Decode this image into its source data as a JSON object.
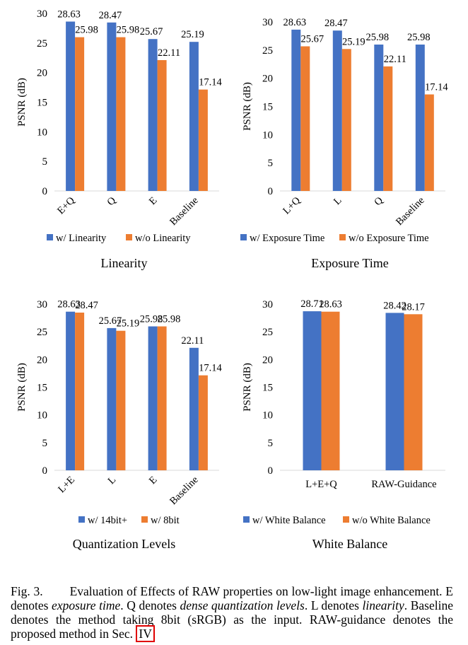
{
  "colors": {
    "series_w": "#4472C4",
    "series_wo": "#ED7D31",
    "axis": "#d9d9d9",
    "text": "#000000"
  },
  "chart_data": [
    {
      "type": "bar",
      "title": "Linearity",
      "ylabel": "PSNR (dB)",
      "xlabel": "",
      "ylim": [
        0,
        30
      ],
      "yticks": [
        "0",
        "5",
        "10",
        "15",
        "20",
        "25",
        "30"
      ],
      "categories": [
        "E+Q",
        "Q",
        "E",
        "Baseline"
      ],
      "label_rotated": true,
      "series": [
        {
          "name": "w/ Linearity",
          "values": [
            28.63,
            28.47,
            25.67,
            25.19
          ],
          "labels": [
            "28.63",
            "28.47",
            "25.67",
            "25.19"
          ]
        },
        {
          "name": "w/o Linearity",
          "values": [
            25.98,
            25.98,
            22.11,
            17.14
          ],
          "labels": [
            "25.98",
            "25.98",
            "22.11",
            "17.14"
          ]
        }
      ],
      "legend": "bottom"
    },
    {
      "type": "bar",
      "title": "Exposure Time",
      "ylabel": "PSNR (dB)",
      "xlabel": "",
      "ylim": [
        0,
        30
      ],
      "yticks": [
        "0",
        "5",
        "10",
        "15",
        "20",
        "25",
        "30"
      ],
      "categories": [
        "L+Q",
        "L",
        "Q",
        "Baseline"
      ],
      "label_rotated": true,
      "series": [
        {
          "name": "w/ Exposure Time",
          "values": [
            28.63,
            28.47,
            25.98,
            25.98
          ],
          "labels": [
            "28.63",
            "28.47",
            "25.98",
            "25.98"
          ]
        },
        {
          "name": "w/o Exposure Time",
          "values": [
            25.67,
            25.19,
            22.11,
            17.14
          ],
          "labels": [
            "25.67",
            "25.19",
            "22.11",
            "17.14"
          ]
        }
      ],
      "legend": "bottom"
    },
    {
      "type": "bar",
      "title": "Quantization Levels",
      "ylabel": "PSNR (dB)",
      "xlabel": "",
      "ylim": [
        0,
        30
      ],
      "yticks": [
        "0",
        "5",
        "10",
        "15",
        "20",
        "25",
        "30"
      ],
      "categories": [
        "L+E",
        "L",
        "E",
        "Baseline"
      ],
      "label_rotated": true,
      "series": [
        {
          "name": "w/ 14bit+",
          "values": [
            28.63,
            25.67,
            25.98,
            22.11
          ],
          "labels": [
            "28.63",
            "25.67",
            "25.98",
            "22.11"
          ]
        },
        {
          "name": "w/ 8bit",
          "values": [
            28.47,
            25.19,
            25.98,
            17.14
          ],
          "labels": [
            "28.47",
            "25.19",
            "25.98",
            "17.14"
          ]
        }
      ],
      "legend": "bottom"
    },
    {
      "type": "bar",
      "title": "White Balance",
      "ylabel": "PSNR (dB)",
      "xlabel": "",
      "ylim": [
        0,
        30
      ],
      "yticks": [
        "0",
        "5",
        "10",
        "15",
        "20",
        "25",
        "30"
      ],
      "categories": [
        "L+E+Q",
        "RAW-Guidance"
      ],
      "label_rotated": false,
      "series": [
        {
          "name": "w/  White Balance",
          "values": [
            28.71,
            28.42
          ],
          "labels": [
            "28.71",
            "28.42"
          ]
        },
        {
          "name": "w/o White Balance",
          "values": [
            28.63,
            28.17
          ],
          "labels": [
            "28.63",
            "28.17"
          ]
        }
      ],
      "legend": "bottom"
    }
  ],
  "caption": {
    "label": "Fig. 3.",
    "text_1": "Evaluation of Effects of RAW properties on low-light image enhancement. E denotes ",
    "em_1": "exposure time",
    "text_2": ". Q denotes ",
    "em_2": "dense quantization levels",
    "text_3": ". L denotes ",
    "em_3": "linearity",
    "text_4": ". Baseline denotes the method taking 8bit (sRGB) as the input. RAW-guidance denotes the proposed method in Sec. ",
    "ref": "IV"
  }
}
